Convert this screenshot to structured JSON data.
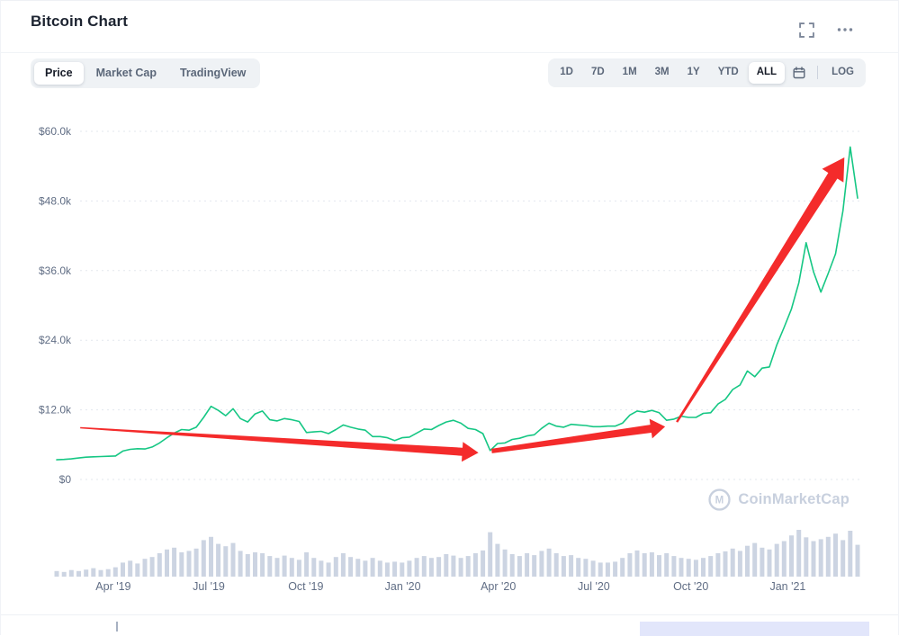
{
  "header": {
    "title": "Bitcoin Chart",
    "icons": [
      "fullscreen-expand-icon",
      "ellipsis-menu-icon"
    ]
  },
  "toolbar": {
    "chart_type_tabs": [
      {
        "label": "Price",
        "active": true
      },
      {
        "label": "Market Cap",
        "active": false
      },
      {
        "label": "TradingView",
        "active": false
      }
    ],
    "range_buttons": [
      {
        "label": "1D",
        "active": false
      },
      {
        "label": "7D",
        "active": false
      },
      {
        "label": "1M",
        "active": false
      },
      {
        "label": "3M",
        "active": false
      },
      {
        "label": "1Y",
        "active": false
      },
      {
        "label": "YTD",
        "active": false
      },
      {
        "label": "ALL",
        "active": true
      }
    ],
    "calendar_icon": "calendar-date-range-icon",
    "log_label": "LOG"
  },
  "watermark": {
    "text": "CoinMarketCap",
    "logo": "coinmarketcap-circle-m-logo",
    "color": "#c8d0de"
  },
  "chart_data": {
    "type": "line",
    "title": "Bitcoin price in USD, ALL range (early 2019 - early 2021), with volume bars and red trend-arrow annotations",
    "line_color": "#16c784",
    "grid": "dashed horizontal gridlines, legend none",
    "ylim": [
      0,
      60000
    ],
    "y_ticks": [
      {
        "label": "$60.0k",
        "value": 60000
      },
      {
        "label": "$48.0k",
        "value": 48000
      },
      {
        "label": "$36.0k",
        "value": 36000
      },
      {
        "label": "$24.0k",
        "value": 24000
      },
      {
        "label": "$12.0k",
        "value": 12000
      },
      {
        "label": "$0",
        "value": 0
      }
    ],
    "x_ticks": [
      {
        "label": "Apr '19",
        "t": 7.7
      },
      {
        "label": "Jul '19",
        "t": 20.7
      },
      {
        "label": "Oct '19",
        "t": 33.9
      },
      {
        "label": "Jan '20",
        "t": 47.1
      },
      {
        "label": "Apr '20",
        "t": 60.1
      },
      {
        "label": "Jul '20",
        "t": 73.1
      },
      {
        "label": "Oct '20",
        "t": 86.3
      },
      {
        "label": "Jan '21",
        "t": 99.5
      }
    ],
    "series": [
      {
        "name": "BTC price (USD), weekly",
        "unit": "USD",
        "values": [
          3400,
          3450,
          3550,
          3700,
          3850,
          3900,
          3950,
          4000,
          4050,
          4900,
          5200,
          5300,
          5250,
          5600,
          6300,
          7200,
          8000,
          8600,
          8500,
          9000,
          10700,
          12600,
          11900,
          11000,
          12200,
          10500,
          9900,
          11300,
          11800,
          10300,
          10100,
          10500,
          10300,
          10000,
          8100,
          8200,
          8300,
          7900,
          8600,
          9400,
          9000,
          8700,
          8500,
          7400,
          7400,
          7200,
          6700,
          7200,
          7300,
          8000,
          8700,
          8600,
          9300,
          9900,
          10200,
          9700,
          8800,
          8600,
          7900,
          5000,
          6200,
          6300,
          6900,
          7100,
          7500,
          7700,
          8800,
          9700,
          9200,
          9000,
          9500,
          9400,
          9300,
          9100,
          9100,
          9200,
          9200,
          9700,
          11100,
          11800,
          11600,
          11900,
          11500,
          10200,
          10400,
          10900,
          10700,
          10700,
          11400,
          11500,
          13000,
          13800,
          15500,
          16300,
          18700,
          17700,
          19200,
          19400,
          23200,
          26200,
          29400,
          33900,
          40800,
          35800,
          32300,
          35500,
          38900,
          46300,
          57300,
          48500
        ]
      }
    ],
    "volume": {
      "name": "volume bars (relative height)",
      "color": "#ccd4e2",
      "values": [
        0.12,
        0.1,
        0.14,
        0.12,
        0.15,
        0.18,
        0.14,
        0.16,
        0.2,
        0.3,
        0.34,
        0.28,
        0.38,
        0.42,
        0.5,
        0.58,
        0.62,
        0.52,
        0.55,
        0.6,
        0.78,
        0.85,
        0.7,
        0.65,
        0.72,
        0.55,
        0.48,
        0.52,
        0.5,
        0.44,
        0.4,
        0.45,
        0.4,
        0.36,
        0.52,
        0.4,
        0.34,
        0.3,
        0.42,
        0.5,
        0.42,
        0.38,
        0.34,
        0.4,
        0.34,
        0.3,
        0.32,
        0.3,
        0.34,
        0.4,
        0.44,
        0.4,
        0.42,
        0.48,
        0.45,
        0.4,
        0.44,
        0.5,
        0.56,
        0.95,
        0.7,
        0.58,
        0.48,
        0.44,
        0.5,
        0.46,
        0.55,
        0.6,
        0.5,
        0.44,
        0.46,
        0.4,
        0.38,
        0.34,
        0.3,
        0.3,
        0.32,
        0.4,
        0.5,
        0.56,
        0.5,
        0.52,
        0.46,
        0.5,
        0.44,
        0.4,
        0.38,
        0.36,
        0.4,
        0.44,
        0.5,
        0.54,
        0.6,
        0.55,
        0.66,
        0.72,
        0.62,
        0.58,
        0.7,
        0.76,
        0.88,
        1.0,
        0.84,
        0.76,
        0.8,
        0.85,
        0.92,
        0.78,
        0.98,
        0.68
      ]
    },
    "annotations": {
      "color": "#f42b2b",
      "arrows": [
        {
          "from": {
            "t": 3.2,
            "v": 8900
          },
          "to": {
            "t": 57.4,
            "v": 4600
          },
          "w_start": 1.5,
          "w_end": 9,
          "head_len": 18,
          "head_w": 22
        },
        {
          "from": {
            "t": 59.2,
            "v": 4900
          },
          "to": {
            "t": 82.8,
            "v": 9100
          },
          "w_start": 5,
          "w_end": 9,
          "head_len": 16,
          "head_w": 22
        },
        {
          "from": {
            "t": 84.4,
            "v": 9900
          },
          "to": {
            "t": 107.2,
            "v": 55500
          },
          "w_start": 2.5,
          "w_end": 12,
          "head_len": 24,
          "head_w": 28
        }
      ]
    }
  },
  "bottom_strip": {
    "selection_color": "#e2e6fb",
    "handle_color": "#a7b1c2"
  }
}
